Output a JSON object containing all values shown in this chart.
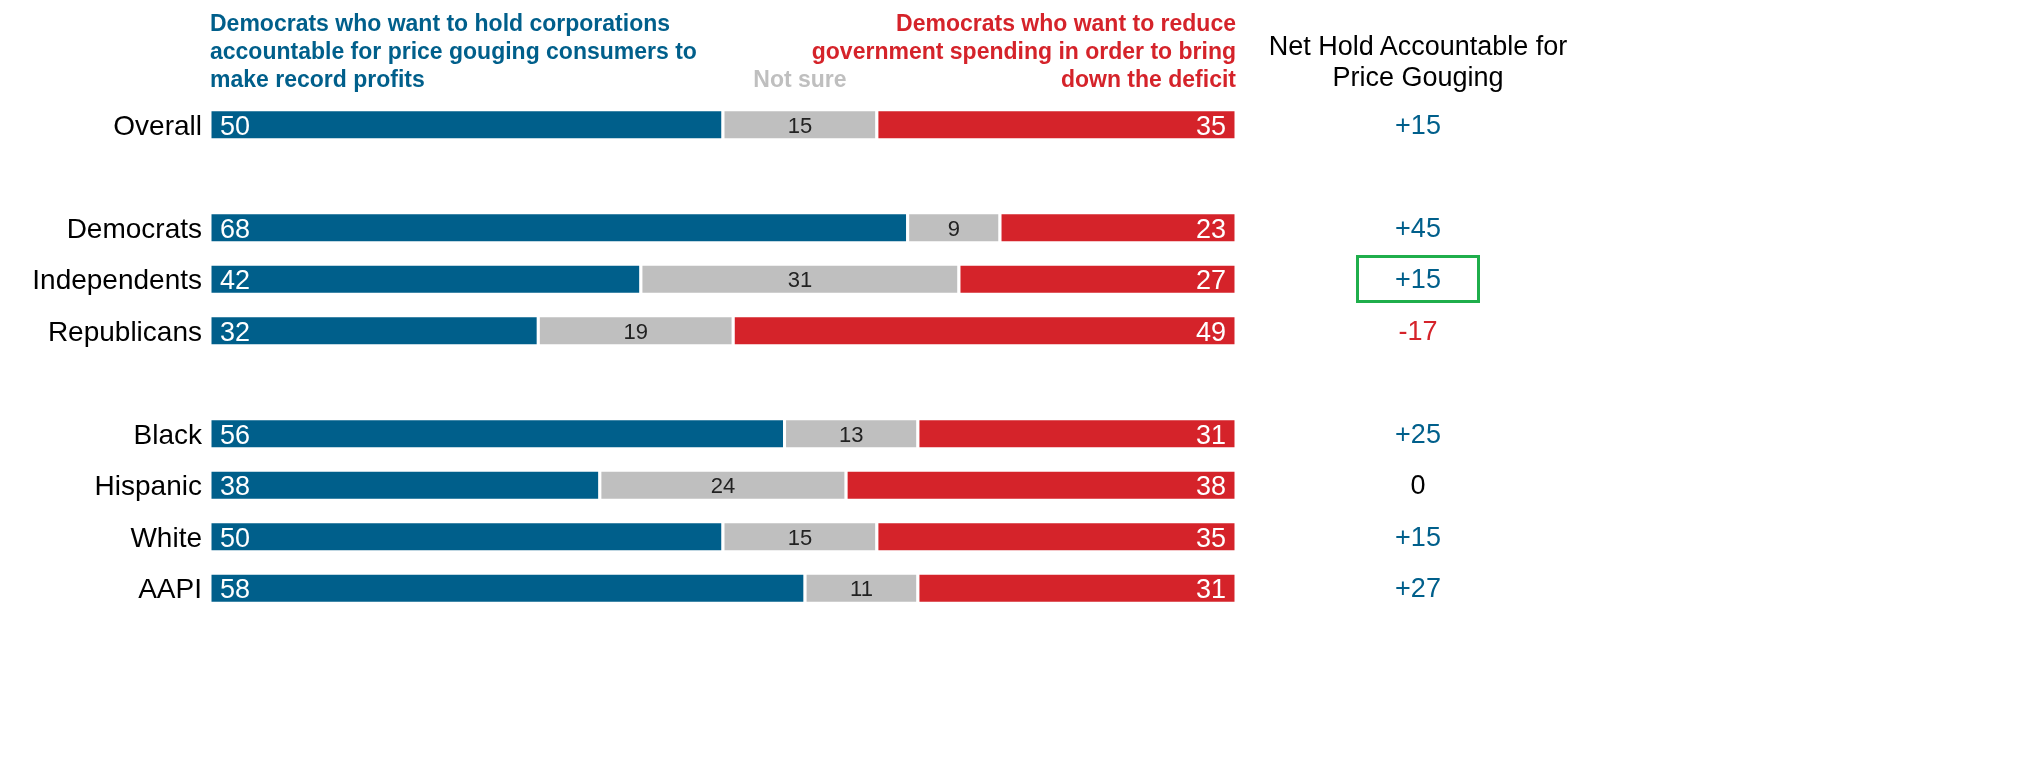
{
  "chart_data": {
    "type": "bar",
    "orientation": "horizontal",
    "stacked": true,
    "categories": [
      "Overall",
      null,
      "Democrats",
      "Independents",
      "Republicans",
      null,
      "Black",
      "Hispanic",
      "White",
      "AAPI"
    ],
    "series": [
      {
        "name": "Democrats who want to hold corporations accountable for price gouging consumers to make record profits",
        "color": "#005f8b",
        "values": [
          50,
          null,
          68,
          42,
          32,
          null,
          56,
          38,
          50,
          58
        ]
      },
      {
        "name": "Not sure",
        "color": "#bfbfbf",
        "values": [
          15,
          null,
          9,
          31,
          19,
          null,
          13,
          24,
          15,
          11
        ]
      },
      {
        "name": "Democrats who want to reduce government spending in order to bring down the deficit",
        "color": "#d5232a",
        "values": [
          35,
          null,
          23,
          27,
          49,
          null,
          31,
          38,
          35,
          31
        ]
      }
    ],
    "xlim": [
      0,
      100
    ],
    "tick_labels": "y",
    "data_labels": true,
    "legend": "top",
    "grid": false,
    "annotations": [
      "Net Hold Accountable for Price Gouging",
      "+15",
      "+45",
      "+15",
      "-17",
      "+25",
      "0",
      "+15",
      "+27"
    ]
  }
}
